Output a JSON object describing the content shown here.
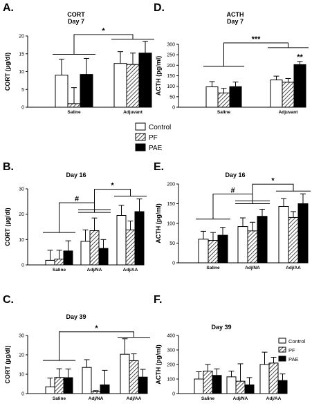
{
  "colors": {
    "control": "#ffffff",
    "pf": "#ffffff",
    "pae": "#000000",
    "stroke": "#000000"
  },
  "legend_main": [
    "Control",
    "PF",
    "PAE"
  ],
  "legend_f": [
    "Control",
    "PF",
    "PAE"
  ],
  "chart_data": [
    {
      "id": "A",
      "letter": "A.",
      "type": "bar",
      "title": "CORT",
      "subtitle": "Day 7",
      "ylabel": "CORT (µg/dl)",
      "ylim": [
        0,
        20
      ],
      "yticks": [
        0,
        5,
        10,
        15,
        20
      ],
      "categories": [
        "Saline",
        "Adjuvant"
      ],
      "series": [
        {
          "name": "Control",
          "values": [
            9.0,
            12.3
          ],
          "errors": [
            4.5,
            3.3
          ]
        },
        {
          "name": "PF",
          "values": [
            1.0,
            12.0
          ],
          "errors": [
            4.5,
            3.2
          ]
        },
        {
          "name": "PAE",
          "values": [
            9.2,
            15.2
          ],
          "errors": [
            4.5,
            3.3
          ]
        }
      ],
      "annotations": [
        {
          "text": "*",
          "between": "groups"
        }
      ]
    },
    {
      "id": "D",
      "letter": "D.",
      "type": "bar",
      "title": "ACTH",
      "subtitle": "Day 7",
      "ylabel": "ACTH (pg/ml)",
      "ylim": [
        0,
        300
      ],
      "yticks": [
        0,
        50,
        100,
        150,
        200,
        250,
        300
      ],
      "categories": [
        "Saline",
        "Adjuvant"
      ],
      "series": [
        {
          "name": "Control",
          "values": [
            97,
            130
          ],
          "errors": [
            25,
            18
          ]
        },
        {
          "name": "PF",
          "values": [
            68,
            119
          ],
          "errors": [
            22,
            18
          ]
        },
        {
          "name": "PAE",
          "values": [
            98,
            203
          ],
          "errors": [
            22,
            15
          ]
        }
      ],
      "annotations": [
        {
          "text": "***",
          "between": "groups"
        },
        {
          "text": "**",
          "over": "Adjuvant PAE"
        }
      ]
    },
    {
      "id": "B",
      "letter": "B.",
      "type": "bar",
      "title": "Day 16",
      "subtitle": "",
      "ylabel": "CORT (µg/dl)",
      "ylim": [
        0,
        30
      ],
      "yticks": [
        0,
        10,
        20,
        30
      ],
      "categories": [
        "Saline",
        "Adj/NA",
        "Adj/AA"
      ],
      "series": [
        {
          "name": "Control",
          "values": [
            1.8,
            9.3,
            19.5
          ],
          "errors": [
            4.0,
            4.5,
            4.0
          ]
        },
        {
          "name": "PF",
          "values": [
            2.3,
            13.5,
            13.8
          ],
          "errors": [
            3.5,
            5.0,
            3.5
          ]
        },
        {
          "name": "PAE",
          "values": [
            5.5,
            6.5,
            21.0
          ],
          "errors": [
            4.0,
            3.5,
            5.0
          ]
        }
      ],
      "annotations": [
        {
          "text": "#",
          "between": "Saline-Adj/NA"
        },
        {
          "text": "*",
          "between": "Adj/NA-Adj/AA"
        }
      ]
    },
    {
      "id": "E",
      "letter": "E.",
      "type": "bar",
      "title": "Day 16",
      "subtitle": "",
      "ylabel": "ACTH (pg/ml)",
      "ylim": [
        0,
        200
      ],
      "yticks": [
        0,
        50,
        100,
        150,
        200
      ],
      "categories": [
        "Saline",
        "Adj/NA",
        "Adj/AA"
      ],
      "series": [
        {
          "name": "Control",
          "values": [
            60,
            92,
            143
          ],
          "errors": [
            20,
            22,
            20
          ]
        },
        {
          "name": "PF",
          "values": [
            57,
            81,
            115
          ],
          "errors": [
            20,
            22,
            15
          ]
        },
        {
          "name": "PAE",
          "values": [
            70,
            118,
            150
          ],
          "errors": [
            20,
            18,
            25
          ]
        }
      ],
      "annotations": [
        {
          "text": "#",
          "between": "Saline-Adj/NA"
        },
        {
          "text": "*",
          "between": "Adj/NA-Adj/AA"
        }
      ]
    },
    {
      "id": "C",
      "letter": "C.",
      "type": "bar",
      "title": "Day 39",
      "subtitle": "",
      "ylabel": "CORT (µg/dl)",
      "ylim": [
        0,
        30
      ],
      "yticks": [
        0,
        10,
        20,
        30
      ],
      "categories": [
        "Saline",
        "Adj/NA",
        "Adj/AA"
      ],
      "series": [
        {
          "name": "Control",
          "values": [
            3.5,
            13.5,
            20.3
          ],
          "errors": [
            4.5,
            4.0,
            8.0
          ]
        },
        {
          "name": "PF",
          "values": [
            8.3,
            1.0,
            17.0
          ],
          "errors": [
            4.5,
            0.5,
            3.5
          ]
        },
        {
          "name": "PAE",
          "values": [
            8.2,
            4.5,
            8.5
          ],
          "errors": [
            4.5,
            7.5,
            4.0
          ]
        }
      ],
      "annotations": [
        {
          "text": "*",
          "between": "Saline-Adj/AA"
        }
      ]
    },
    {
      "id": "F",
      "letter": "F.",
      "type": "bar",
      "title": "Day 39",
      "subtitle": "",
      "ylabel": "ACTH (pg/ml)",
      "ylim": [
        0,
        400
      ],
      "yticks": [
        0,
        100,
        200,
        300,
        400
      ],
      "categories": [
        "Saline",
        "Adj/NA",
        "Adj/AA"
      ],
      "series": [
        {
          "name": "Control",
          "values": [
            100,
            115,
            200
          ],
          "errors": [
            50,
            40,
            85
          ]
        },
        {
          "name": "PF",
          "values": [
            155,
            85,
            210
          ],
          "errors": [
            45,
            120,
            40
          ]
        },
        {
          "name": "PAE",
          "values": [
            125,
            60,
            90
          ],
          "errors": [
            45,
            50,
            45
          ]
        }
      ],
      "annotations": []
    }
  ]
}
